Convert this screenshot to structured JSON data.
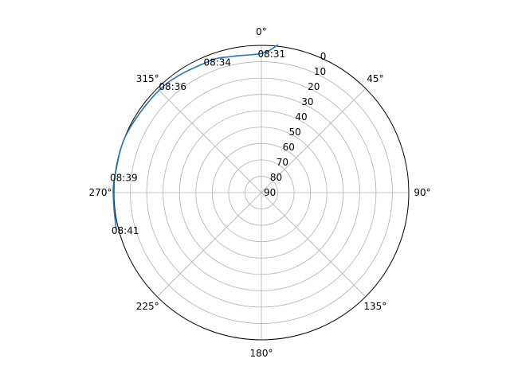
{
  "chart_data": {
    "type": "line",
    "projection": "polar",
    "theta_zero_location": "top",
    "theta_direction": "clockwise",
    "theta_ticks": [
      "0°",
      "45°",
      "90°",
      "135°",
      "180°",
      "225°",
      "270°",
      "315°"
    ],
    "theta_tick_degrees": [
      0,
      45,
      90,
      135,
      180,
      225,
      270,
      315
    ],
    "r_ticks": [
      "0",
      "10",
      "20",
      "30",
      "40",
      "50",
      "60",
      "70",
      "80",
      "90"
    ],
    "r_tick_values": [
      0,
      10,
      20,
      30,
      40,
      50,
      60,
      70,
      80,
      90
    ],
    "rlim": [
      90,
      0
    ],
    "grid": true,
    "series": [
      {
        "color": "#1f77b4",
        "points": [
          {
            "theta": 6.5,
            "r": -1
          },
          {
            "theta": 0.5,
            "r": 4.8
          },
          {
            "theta": 347.5,
            "r": 4.8
          },
          {
            "theta": 338,
            "r": 3.6
          },
          {
            "theta": 317.5,
            "r": 1.7
          },
          {
            "theta": 294,
            "r": 0.3
          },
          {
            "theta": 276,
            "r": 0
          },
          {
            "theta": 267,
            "r": -0.4
          },
          {
            "theta": 255.5,
            "r": -1.5
          }
        ]
      }
    ],
    "annotations": [
      {
        "text": "08:31",
        "theta": 0.5,
        "r": 4.8
      },
      {
        "text": "08:34",
        "theta": 338,
        "r": 3.6
      },
      {
        "text": "08:36",
        "theta": 317.5,
        "r": 1.7
      },
      {
        "text": "08:39",
        "theta": 276,
        "r": 0
      },
      {
        "text": "08:41",
        "theta": 255.5,
        "r": -1.5
      }
    ]
  }
}
